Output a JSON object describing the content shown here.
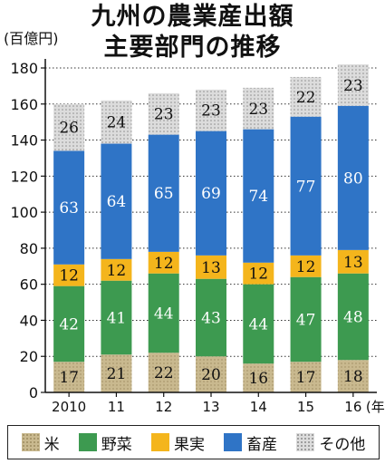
{
  "title_lines": [
    "九州の農業産出額",
    "主要部門の推移"
  ],
  "unit_label": "(百億円)",
  "x_suffix": "(年)",
  "colors": {
    "rice": "#c9b98f",
    "vegetables": "#3d9a50",
    "fruit": "#f4b51c",
    "livestock": "#2f74c6",
    "other": "#d6d6d6"
  },
  "chart_data": {
    "type": "bar",
    "stacked": true,
    "title": "九州の農業産出額 主要部門の推移",
    "ylabel": "(百億円)",
    "xlabel": "(年)",
    "ylim": [
      0,
      180
    ],
    "yticks": [
      0,
      20,
      40,
      60,
      80,
      100,
      120,
      140,
      160,
      180
    ],
    "grid": true,
    "legend": "bottom",
    "categories": [
      "2010",
      "11",
      "12",
      "13",
      "14",
      "15",
      "16"
    ],
    "series": [
      {
        "name": "米",
        "key": "rice",
        "values": [
          17,
          21,
          22,
          20,
          16,
          17,
          18
        ]
      },
      {
        "name": "野菜",
        "key": "vegetables",
        "values": [
          42,
          41,
          44,
          43,
          44,
          47,
          48
        ]
      },
      {
        "name": "果実",
        "key": "fruit",
        "values": [
          12,
          12,
          12,
          13,
          12,
          12,
          13
        ]
      },
      {
        "name": "畜産",
        "key": "livestock",
        "values": [
          63,
          64,
          65,
          69,
          74,
          77,
          80
        ]
      },
      {
        "name": "その他",
        "key": "other",
        "values": [
          26,
          24,
          23,
          23,
          23,
          22,
          23
        ]
      }
    ]
  }
}
